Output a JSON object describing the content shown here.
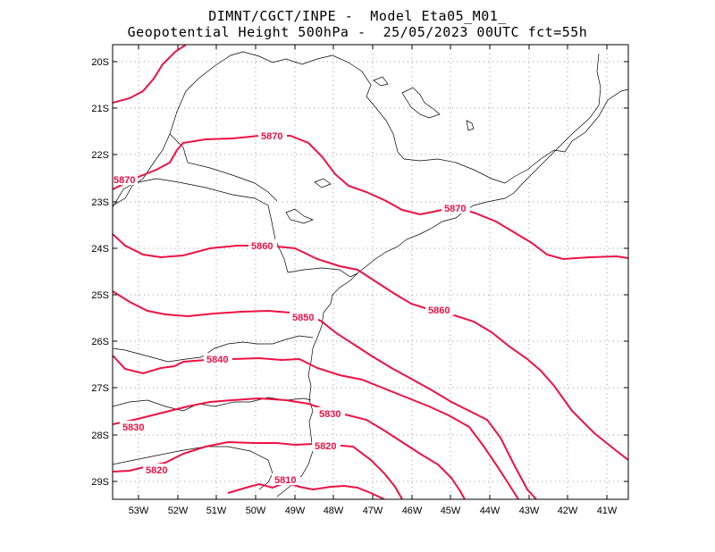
{
  "title": {
    "line1": "DIMNT/CGCT/INPE -  Model Eta05_M01_",
    "line2": "Geopotential Height 500hPa -  25/05/2023 00UTC fct=55h"
  },
  "map": {
    "lon_range": [
      -53.6,
      -40.5
    ],
    "lat_range": [
      -29.4,
      -19.7
    ],
    "lat_ticks": [
      "20S",
      "21S",
      "22S",
      "23S",
      "24S",
      "25S",
      "26S",
      "27S",
      "28S",
      "29S"
    ],
    "lon_ticks": [
      "53W",
      "52W",
      "51W",
      "50W",
      "49W",
      "48W",
      "47W",
      "46W",
      "45W",
      "44W",
      "43W",
      "42W",
      "41W"
    ],
    "contour_color": "#ee1144",
    "coast_color": "#000000",
    "grid_color": "#999999"
  },
  "contour_labels": {
    "c5870a": "5870",
    "c5870b": "5870",
    "c5870c": "5870",
    "c5860a": "5860",
    "c5860b": "5860",
    "c5850": "5850",
    "c5840": "5840",
    "c5830a": "5830",
    "c5830b": "5830",
    "c5820a": "5820",
    "c5820b": "5820",
    "c5810": "5810"
  }
}
